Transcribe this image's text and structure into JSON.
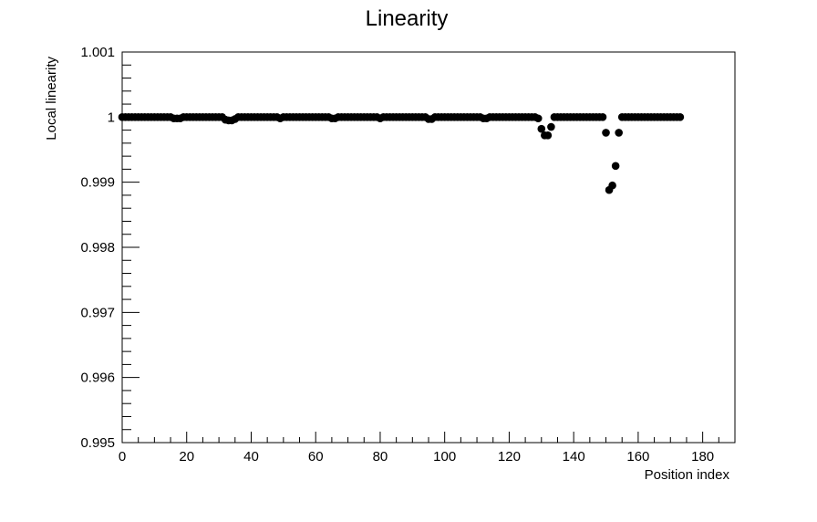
{
  "chart_data": {
    "type": "scatter",
    "title": "Linearity",
    "xlabel": "Position index",
    "ylabel": "Local linearity",
    "xlim": [
      0,
      190
    ],
    "ylim": [
      0.995,
      1.001
    ],
    "x_ticks": [
      0,
      20,
      40,
      60,
      80,
      100,
      120,
      140,
      160,
      180
    ],
    "x_tick_labels": [
      "0",
      "20",
      "40",
      "60",
      "80",
      "100",
      "120",
      "140",
      "160",
      "180"
    ],
    "y_ticks": [
      0.995,
      0.996,
      0.997,
      0.998,
      0.999,
      1.0,
      1.001
    ],
    "y_tick_labels": [
      "0.995",
      "0.996",
      "0.997",
      "0.998",
      "0.999",
      "1",
      "1.001"
    ],
    "grid": false,
    "marker_color": "#000000",
    "baseline_value": 1.0,
    "baseline_x_range": [
      0,
      173
    ],
    "points": [
      {
        "x": 16,
        "y": 0.99998
      },
      {
        "x": 17,
        "y": 0.99998
      },
      {
        "x": 18,
        "y": 0.99998
      },
      {
        "x": 32,
        "y": 0.99996
      },
      {
        "x": 33,
        "y": 0.99995
      },
      {
        "x": 34,
        "y": 0.99995
      },
      {
        "x": 35,
        "y": 0.99997
      },
      {
        "x": 49,
        "y": 0.99998
      },
      {
        "x": 65,
        "y": 0.99998
      },
      {
        "x": 66,
        "y": 0.99998
      },
      {
        "x": 80,
        "y": 0.99998
      },
      {
        "x": 95,
        "y": 0.99997
      },
      {
        "x": 96,
        "y": 0.99997
      },
      {
        "x": 112,
        "y": 0.99998
      },
      {
        "x": 113,
        "y": 0.99998
      },
      {
        "x": 129,
        "y": 0.99998
      },
      {
        "x": 130,
        "y": 0.99982
      },
      {
        "x": 131,
        "y": 0.99972
      },
      {
        "x": 132,
        "y": 0.99972
      },
      {
        "x": 133,
        "y": 0.99985
      },
      {
        "x": 150,
        "y": 0.99976
      },
      {
        "x": 151,
        "y": 0.99888
      },
      {
        "x": 152,
        "y": 0.99895
      },
      {
        "x": 153,
        "y": 0.99925
      },
      {
        "x": 154,
        "y": 0.99976
      }
    ]
  }
}
